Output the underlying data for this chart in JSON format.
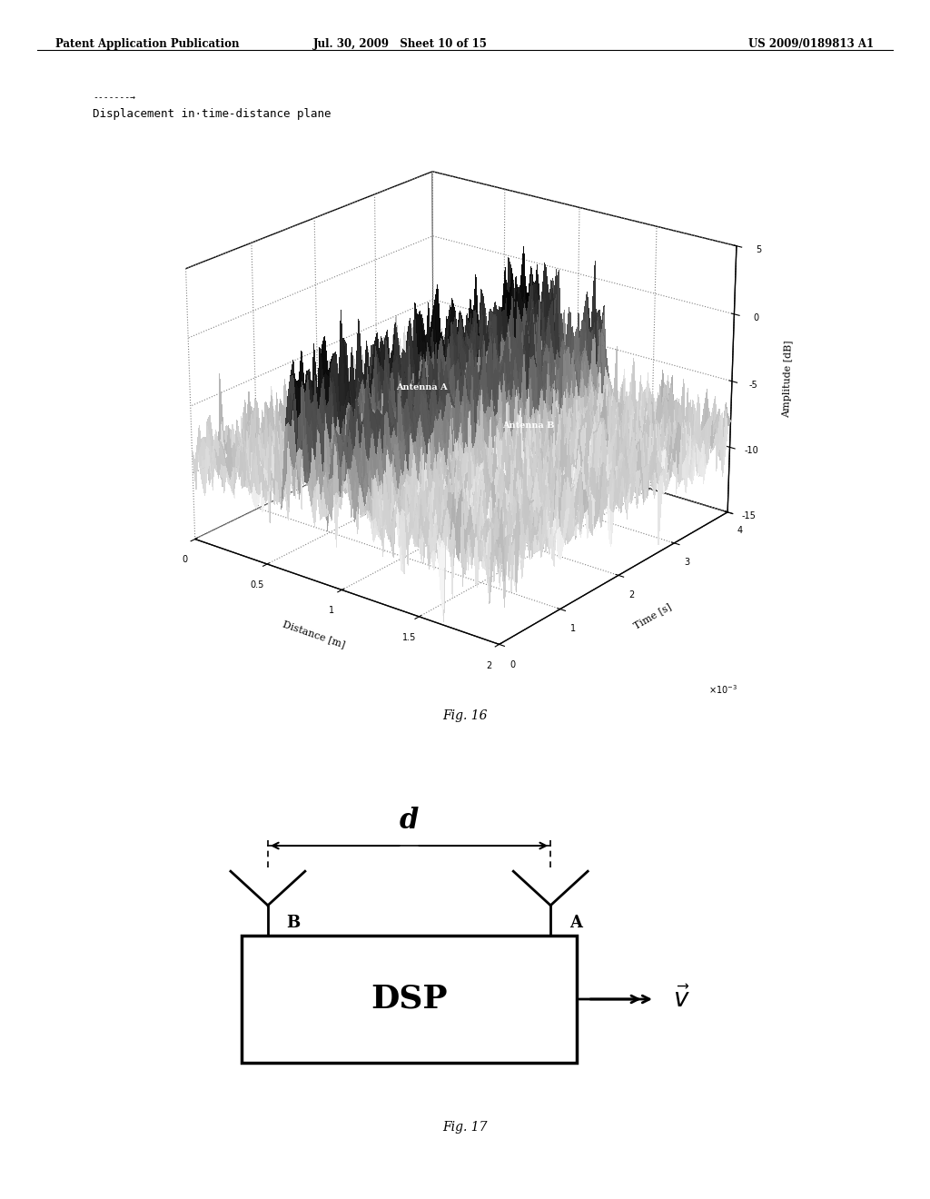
{
  "header_left": "Patent Application Publication",
  "header_mid": "Jul. 30, 2009   Sheet 10 of 15",
  "header_right": "US 2009/0189813 A1",
  "fig16_title": "Displacement in·time-distance plane",
  "fig16_xlabel": "Distance [m]",
  "fig16_ylabel": "Time [s]",
  "fig16_zlabel": "Amplitude [dB]",
  "fig16_zlim": [
    -15,
    5
  ],
  "fig16_xlim": [
    0,
    2
  ],
  "fig16_ylim": [
    0,
    4
  ],
  "fig16_xticks": [
    0,
    0.5,
    1,
    1.5,
    2
  ],
  "fig16_yticks": [
    0,
    1,
    2,
    3,
    4
  ],
  "fig16_zticks": [
    -15,
    -10,
    -5,
    0,
    5
  ],
  "fig16_label": "Fig. 16",
  "fig17_label": "Fig. 17",
  "antenna_a_label": "A",
  "antenna_b_label": "B",
  "dsp_label": "DSP",
  "distance_label": "d",
  "background_color": "#ffffff",
  "text_color": "#000000"
}
